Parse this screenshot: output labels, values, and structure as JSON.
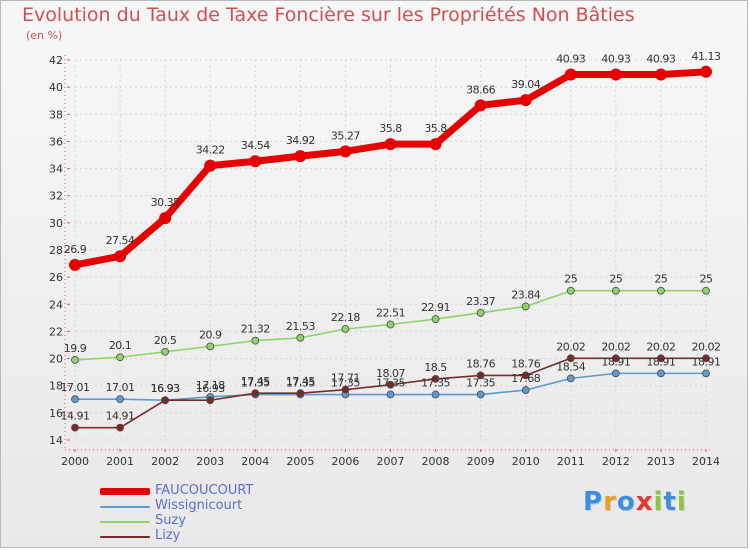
{
  "title": "Evolution du Taux de Taxe Foncière sur les Propriétés Non Bâties",
  "unit": "(en %)",
  "logo": {
    "letters": [
      "P",
      "r",
      "o",
      "x",
      "i",
      "t",
      "i"
    ],
    "colors": [
      "#3d8ee0",
      "#f0a020",
      "#3d8ee0",
      "#e03a30",
      "#8cc63f",
      "#3d8ee0",
      "#8cc63f"
    ]
  },
  "chart_data": {
    "type": "line",
    "x": [
      "2000",
      "2001",
      "2002",
      "2003",
      "2004",
      "2005",
      "2006",
      "2007",
      "2008",
      "2009",
      "2010",
      "2011",
      "2012",
      "2013",
      "2014"
    ],
    "ylim": [
      14,
      42
    ],
    "yticks": [
      "14",
      "16",
      "18",
      "20",
      "22",
      "24",
      "26",
      "28",
      "30",
      "32",
      "34",
      "36",
      "38",
      "40",
      "42"
    ],
    "xlabel": "",
    "ylabel": "",
    "grid": true,
    "legend_position": "bottom-left",
    "series": [
      {
        "name": "FAUCOUCOURT",
        "color": "#e60000",
        "values": [
          26.9,
          27.54,
          30.35,
          34.22,
          34.54,
          34.92,
          35.27,
          35.8,
          35.8,
          38.66,
          39.04,
          40.93,
          40.93,
          40.93,
          41.13
        ],
        "labels": [
          "26.9",
          "27.54",
          "30.35",
          "34.22",
          "34.54",
          "34.92",
          "35.27",
          "35.8",
          "35.8",
          "38.66",
          "39.04",
          "40.93",
          "40.93",
          "40.93",
          "41.13"
        ]
      },
      {
        "name": "Wissignicourt",
        "color": "#5b9bd5",
        "values": [
          17.01,
          17.01,
          16.93,
          17.18,
          17.35,
          17.35,
          17.35,
          17.35,
          17.35,
          17.35,
          17.68,
          18.54,
          18.91,
          18.91,
          18.91
        ],
        "labels": [
          "17.01",
          "17.01",
          "16.93",
          "17.18",
          "17.35",
          "17.35",
          "17.35",
          "17.35",
          "17.35",
          "17.35",
          "17.68",
          "18.54",
          "18.91",
          "18.91",
          "18.91"
        ]
      },
      {
        "name": "Suzy",
        "color": "#8fd46b",
        "values": [
          19.9,
          20.1,
          20.5,
          20.9,
          21.32,
          21.53,
          22.18,
          22.51,
          22.91,
          23.37,
          23.84,
          25,
          25,
          25,
          25
        ],
        "labels": [
          "19.9",
          "20.1",
          "20.5",
          "20.9",
          "21.32",
          "21.53",
          "22.18",
          "22.51",
          "22.91",
          "23.37",
          "23.84",
          "25",
          "25",
          "25",
          "25"
        ]
      },
      {
        "name": "Lizy",
        "color": "#7a2a2a",
        "values": [
          14.91,
          14.91,
          16.93,
          16.93,
          17.45,
          17.45,
          17.71,
          18.07,
          18.5,
          18.76,
          18.76,
          20.02,
          20.02,
          20.02,
          20.02
        ],
        "labels": [
          "14.91",
          "14.91",
          "16.93",
          "16.93",
          "17.45",
          "17.45",
          "17.71",
          "18.07",
          "18.5",
          "18.76",
          "18.76",
          "20.02",
          "20.02",
          "20.02",
          "20.02"
        ]
      }
    ]
  }
}
